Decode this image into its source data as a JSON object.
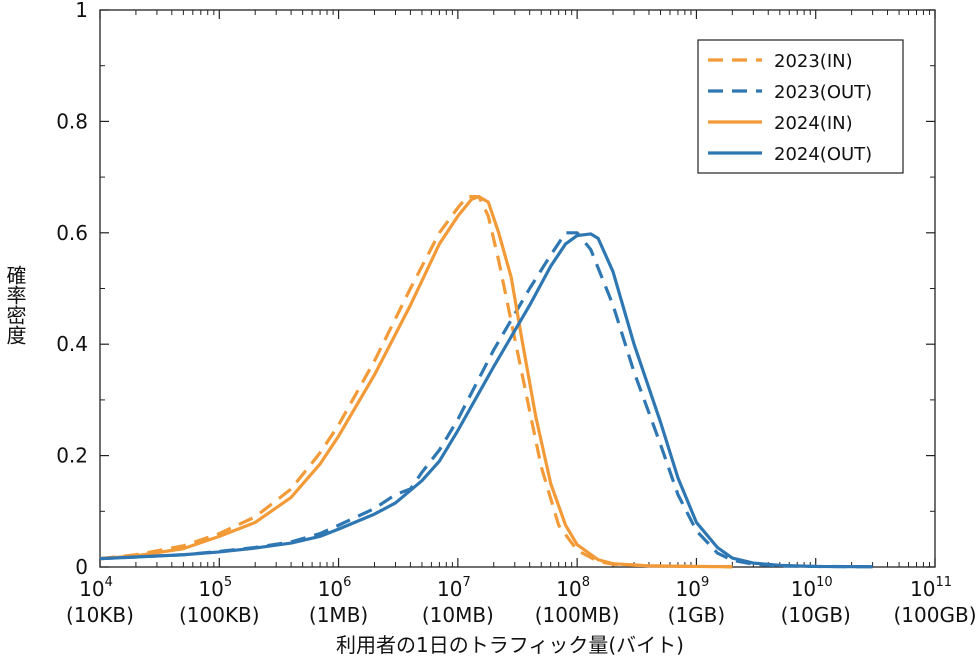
{
  "chart_data": {
    "type": "line",
    "title": "",
    "xlabel": "利用者の1日のトラフィック量(バイト)",
    "ylabel": "確率密度",
    "x_scale": "log",
    "xlim": [
      10000,
      100000000000
    ],
    "ylim": [
      0,
      1
    ],
    "grid": false,
    "legend_position": "top-right",
    "x_ticks": [
      {
        "base": "10",
        "exp": "4",
        "sub": "(10KB)",
        "value": 10000
      },
      {
        "base": "10",
        "exp": "5",
        "sub": "(100KB)",
        "value": 100000
      },
      {
        "base": "10",
        "exp": "6",
        "sub": "(1MB)",
        "value": 1000000
      },
      {
        "base": "10",
        "exp": "7",
        "sub": "(10MB)",
        "value": 10000000
      },
      {
        "base": "10",
        "exp": "8",
        "sub": "(100MB)",
        "value": 100000000
      },
      {
        "base": "10",
        "exp": "9",
        "sub": "(1GB)",
        "value": 1000000000
      },
      {
        "base": "10",
        "exp": "10",
        "sub": "(10GB)",
        "value": 10000000000
      },
      {
        "base": "10",
        "exp": "11",
        "sub": "(100GB)",
        "value": 100000000000
      }
    ],
    "y_ticks": [
      {
        "value": 0,
        "label": "0"
      },
      {
        "value": 0.2,
        "label": "0.2"
      },
      {
        "value": 0.4,
        "label": "0.4"
      },
      {
        "value": 0.6,
        "label": "0.6"
      },
      {
        "value": 0.8,
        "label": "0.8"
      },
      {
        "value": 1,
        "label": "1"
      }
    ],
    "series": [
      {
        "name": "2023(IN)",
        "color": "#f39a38",
        "dash": true,
        "points": [
          [
            10000,
            0.015
          ],
          [
            20000,
            0.022
          ],
          [
            50000,
            0.038
          ],
          [
            100000,
            0.06
          ],
          [
            200000,
            0.09
          ],
          [
            400000,
            0.14
          ],
          [
            700000,
            0.205
          ],
          [
            1000000,
            0.255
          ],
          [
            2000000,
            0.37
          ],
          [
            4000000,
            0.5
          ],
          [
            7000000,
            0.6
          ],
          [
            10000000,
            0.645
          ],
          [
            12000000,
            0.665
          ],
          [
            15000000,
            0.665
          ],
          [
            18000000,
            0.63
          ],
          [
            22000000,
            0.55
          ],
          [
            30000000,
            0.41
          ],
          [
            40000000,
            0.28
          ],
          [
            50000000,
            0.18
          ],
          [
            70000000,
            0.075
          ],
          [
            100000000,
            0.03
          ],
          [
            150000000,
            0.01
          ],
          [
            200000000,
            0.005
          ],
          [
            400000000,
            0.002
          ],
          [
            1000000000,
            0.001
          ],
          [
            2000000000,
            0.0005
          ]
        ]
      },
      {
        "name": "2023(OUT)",
        "color": "#2e77b2",
        "dash": true,
        "points": [
          [
            10000,
            0.015
          ],
          [
            20000,
            0.018
          ],
          [
            50000,
            0.022
          ],
          [
            100000,
            0.028
          ],
          [
            200000,
            0.035
          ],
          [
            400000,
            0.045
          ],
          [
            700000,
            0.06
          ],
          [
            1000000,
            0.075
          ],
          [
            2000000,
            0.105
          ],
          [
            3000000,
            0.13
          ],
          [
            4000000,
            0.14
          ],
          [
            5000000,
            0.17
          ],
          [
            7000000,
            0.21
          ],
          [
            10000000,
            0.265
          ],
          [
            20000000,
            0.39
          ],
          [
            40000000,
            0.5
          ],
          [
            60000000,
            0.56
          ],
          [
            80000000,
            0.6
          ],
          [
            100000000,
            0.6
          ],
          [
            130000000,
            0.57
          ],
          [
            200000000,
            0.47
          ],
          [
            300000000,
            0.35
          ],
          [
            500000000,
            0.22
          ],
          [
            700000000,
            0.13
          ],
          [
            1000000000,
            0.065
          ],
          [
            1500000000,
            0.025
          ],
          [
            2000000000,
            0.012
          ],
          [
            3000000000,
            0.005
          ],
          [
            5000000000,
            0.002
          ],
          [
            10000000000,
            0.001
          ],
          [
            30000000000,
            0.0005
          ]
        ]
      },
      {
        "name": "2024(IN)",
        "color": "#f39a38",
        "dash": false,
        "points": [
          [
            10000,
            0.015
          ],
          [
            20000,
            0.02
          ],
          [
            50000,
            0.033
          ],
          [
            100000,
            0.055
          ],
          [
            200000,
            0.08
          ],
          [
            400000,
            0.125
          ],
          [
            700000,
            0.185
          ],
          [
            1000000,
            0.235
          ],
          [
            2000000,
            0.345
          ],
          [
            4000000,
            0.47
          ],
          [
            7000000,
            0.58
          ],
          [
            10000000,
            0.63
          ],
          [
            13000000,
            0.66
          ],
          [
            15000000,
            0.665
          ],
          [
            18000000,
            0.655
          ],
          [
            22000000,
            0.6
          ],
          [
            28000000,
            0.52
          ],
          [
            35000000,
            0.4
          ],
          [
            45000000,
            0.27
          ],
          [
            60000000,
            0.15
          ],
          [
            80000000,
            0.075
          ],
          [
            100000000,
            0.04
          ],
          [
            150000000,
            0.013
          ],
          [
            200000000,
            0.006
          ],
          [
            400000000,
            0.002
          ],
          [
            1000000000,
            0.001
          ],
          [
            2000000000,
            0.0005
          ]
        ]
      },
      {
        "name": "2024(OUT)",
        "color": "#2e77b2",
        "dash": false,
        "points": [
          [
            10000,
            0.015
          ],
          [
            20000,
            0.018
          ],
          [
            50000,
            0.022
          ],
          [
            100000,
            0.027
          ],
          [
            200000,
            0.034
          ],
          [
            400000,
            0.043
          ],
          [
            700000,
            0.055
          ],
          [
            1000000,
            0.068
          ],
          [
            2000000,
            0.095
          ],
          [
            3000000,
            0.115
          ],
          [
            5000000,
            0.155
          ],
          [
            7000000,
            0.19
          ],
          [
            10000000,
            0.245
          ],
          [
            20000000,
            0.36
          ],
          [
            40000000,
            0.47
          ],
          [
            60000000,
            0.54
          ],
          [
            80000000,
            0.58
          ],
          [
            100000000,
            0.595
          ],
          [
            130000000,
            0.598
          ],
          [
            150000000,
            0.59
          ],
          [
            200000000,
            0.53
          ],
          [
            300000000,
            0.4
          ],
          [
            500000000,
            0.26
          ],
          [
            700000000,
            0.16
          ],
          [
            1000000000,
            0.08
          ],
          [
            1500000000,
            0.035
          ],
          [
            2000000000,
            0.016
          ],
          [
            3000000000,
            0.007
          ],
          [
            5000000000,
            0.003
          ],
          [
            10000000000,
            0.001
          ],
          [
            30000000000,
            0.0005
          ]
        ]
      }
    ]
  }
}
